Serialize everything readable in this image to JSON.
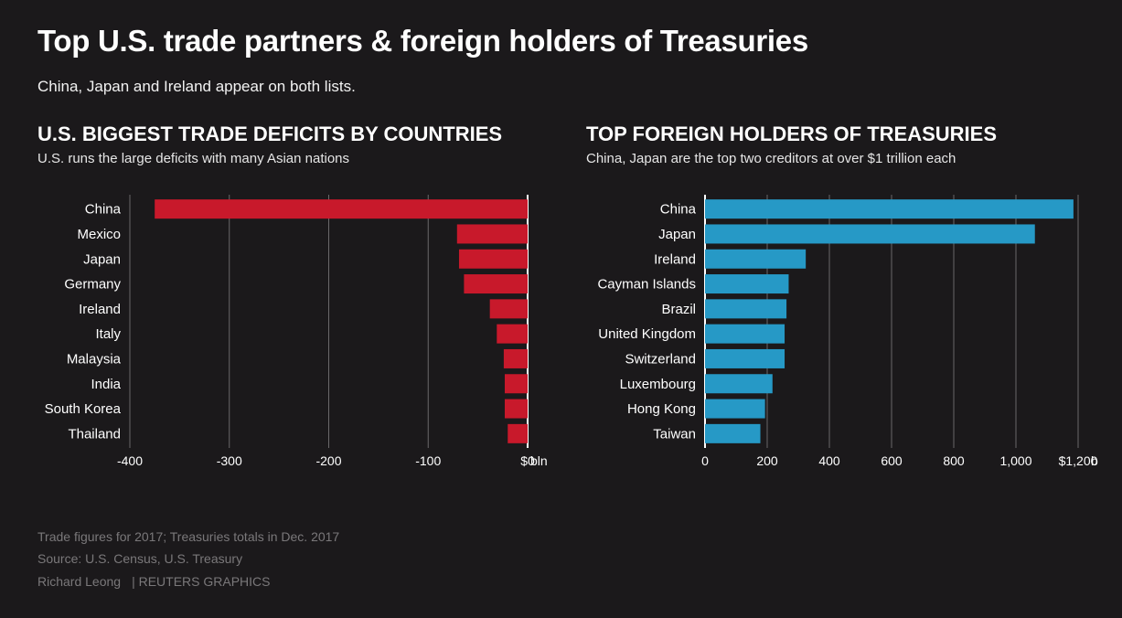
{
  "header": {
    "title": "Top U.S. trade partners & foreign holders of Treasuries",
    "subtitle": "China, Japan and Ireland appear on both lists."
  },
  "panels": {
    "left": {
      "title": "U.S. BIGGEST TRADE DEFICITS BY COUNTRIES",
      "subtitle": "U.S. runs the large deficits with many Asian nations"
    },
    "right": {
      "title": "TOP FOREIGN HOLDERS OF TREASURIES",
      "subtitle": "China, Japan are the top two creditors at over $1 trillion each"
    }
  },
  "footer": {
    "note": "Trade figures for 2017; Treasuries totals in Dec. 2017",
    "source": "Source: U.S. Census, U.S. Treasury",
    "author": "Richard Leong",
    "brand": "| REUTERS GRAPHICS"
  },
  "chart_data": [
    {
      "type": "bar",
      "orientation": "horizontal",
      "title": "U.S. BIGGEST TRADE DEFICITS BY COUNTRIES",
      "subtitle": "U.S. runs the large deficits with many Asian nations",
      "color": "#c8192b",
      "categories": [
        "China",
        "Mexico",
        "Japan",
        "Germany",
        "Ireland",
        "Italy",
        "Malaysia",
        "India",
        "South Korea",
        "Thailand"
      ],
      "values": [
        -375,
        -71,
        -69,
        -64,
        -38,
        -31,
        -24,
        -23,
        -23,
        -20
      ],
      "xlim": [
        -400,
        0
      ],
      "ticks": [
        -400,
        -300,
        -200,
        -100,
        0
      ],
      "tick_labels": [
        "-400",
        "-300",
        "-200",
        "-100",
        "$0"
      ],
      "unit_label": "bln",
      "grid": true
    },
    {
      "type": "bar",
      "orientation": "horizontal",
      "title": "TOP FOREIGN HOLDERS OF TREASURIES",
      "subtitle": "China, Japan are the top two creditors at over $1 trillion each",
      "color": "#2699c6",
      "categories": [
        "China",
        "Japan",
        "Ireland",
        "Cayman Islands",
        "Brazil",
        "United Kingdom",
        "Switzerland",
        "Luxembourg",
        "Hong Kong",
        "Taiwan"
      ],
      "values": [
        1185,
        1061,
        324,
        269,
        262,
        256,
        256,
        217,
        193,
        178
      ],
      "xlim": [
        0,
        1200
      ],
      "ticks": [
        0,
        200,
        400,
        600,
        800,
        1000,
        1200
      ],
      "tick_labels": [
        "0",
        "200",
        "400",
        "600",
        "800",
        "1,000",
        "$1,200"
      ],
      "unit_label": "b",
      "grid": true
    }
  ]
}
